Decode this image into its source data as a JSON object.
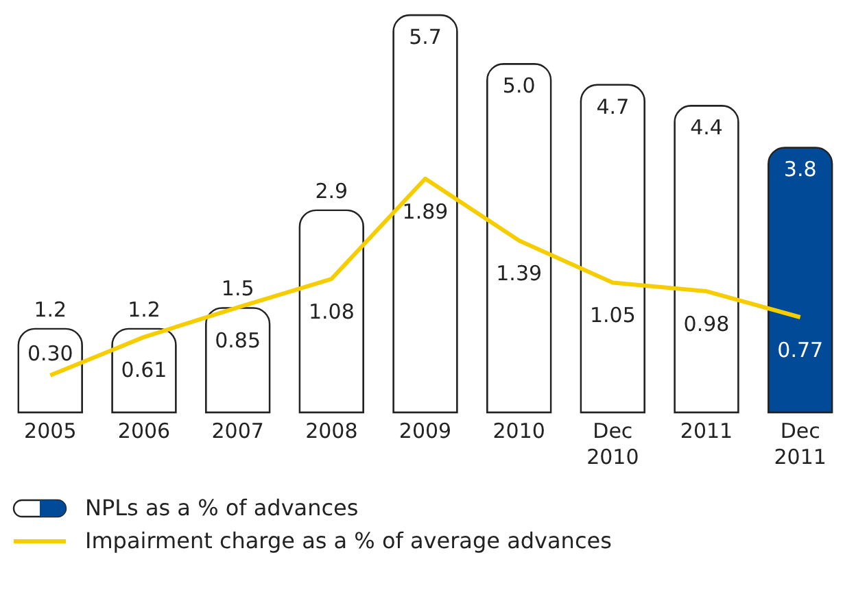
{
  "chart_data": {
    "type": "bar",
    "categories": [
      "2005",
      "2006",
      "2007",
      "2008",
      "2009",
      "2010",
      "Dec 2010",
      "2011",
      "Dec 2011"
    ],
    "series": [
      {
        "name": "NPLs as a % of advances",
        "color": "#ffffff",
        "colors": [
          "#ffffff",
          "#ffffff",
          "#ffffff",
          "#ffffff",
          "#ffffff",
          "#ffffff",
          "#ffffff",
          "#ffffff",
          "#004a97"
        ],
        "values": [
          1.2,
          1.2,
          1.5,
          2.9,
          5.7,
          5.0,
          4.7,
          4.4,
          3.8
        ],
        "value_labels": [
          "1.2",
          "1.2",
          "1.5",
          "2.9",
          "5.7",
          "5.0",
          "4.7",
          "4.4",
          "3.8"
        ]
      },
      {
        "name": "Impairment charge as a % of average advances",
        "type": "line",
        "axis": "y2",
        "color": "#f5cd00",
        "values": [
          0.3,
          0.61,
          0.85,
          1.08,
          1.89,
          1.39,
          1.05,
          0.98,
          0.77
        ],
        "value_labels": [
          "0.30",
          "0.61",
          "0.85",
          "1.08",
          "1.89",
          "1.39",
          "1.05",
          "0.98",
          "0.77"
        ]
      }
    ],
    "legend": "bottom left",
    "grid": false,
    "marker": "none",
    "line_style": "solid",
    "tick_labels": "x"
  }
}
